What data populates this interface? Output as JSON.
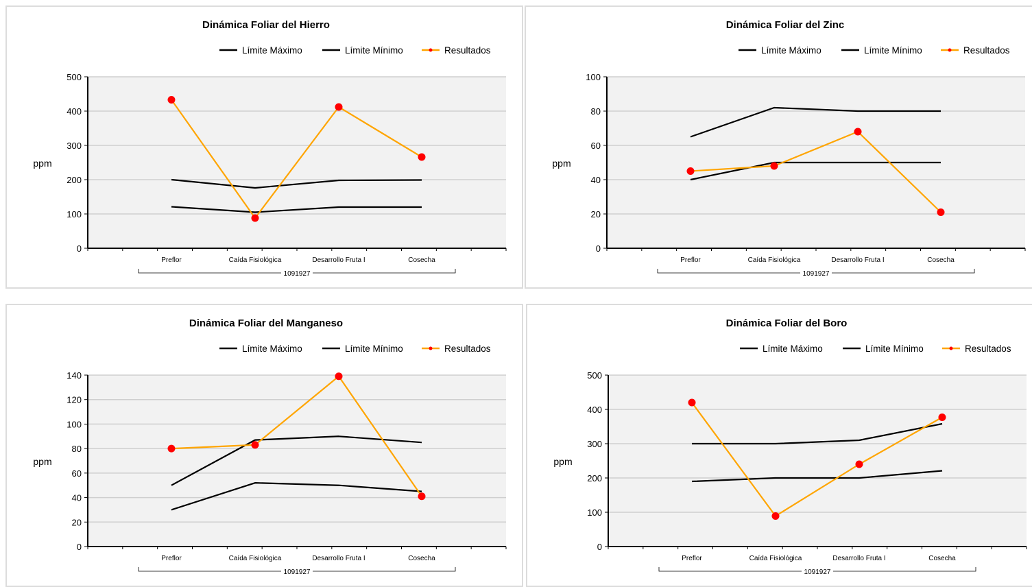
{
  "chart_data": [
    {
      "type": "line",
      "title": "Dinámica Foliar del Hierro",
      "ylabel": "ppm",
      "group_label": "1091927",
      "categories": [
        "Preflor",
        "Caída Fisiológica",
        "Desarrollo Fruta I",
        "Cosecha"
      ],
      "ylim": [
        0,
        500
      ],
      "yticks": [
        0,
        100,
        200,
        300,
        400,
        500
      ],
      "legend_position": "top-right",
      "grid": true,
      "series": [
        {
          "name": "Límite Máximo",
          "color": "#000000",
          "markers": false,
          "values": [
            200,
            176,
            198,
            199
          ]
        },
        {
          "name": "Límite Mínimo",
          "color": "#000000",
          "markers": false,
          "values": [
            121,
            105,
            120,
            120
          ]
        },
        {
          "name": "Resultados",
          "color": "#ffa500",
          "marker_color": "#ff0000",
          "markers": true,
          "values": [
            433,
            88,
            412,
            266
          ]
        }
      ]
    },
    {
      "type": "line",
      "title": "Dinámica Foliar del Zinc",
      "ylabel": "ppm",
      "group_label": "1091927",
      "categories": [
        "Preflor",
        "Caída Fisiológica",
        "Desarrollo Fruta I",
        "Cosecha"
      ],
      "ylim": [
        0,
        100
      ],
      "yticks": [
        0,
        20,
        40,
        60,
        80,
        100
      ],
      "legend_position": "top-right",
      "grid": true,
      "series": [
        {
          "name": "Límite Máximo",
          "color": "#000000",
          "markers": false,
          "values": [
            65,
            82,
            80,
            80
          ]
        },
        {
          "name": "Límite Mínimo",
          "color": "#000000",
          "markers": false,
          "values": [
            40,
            50,
            50,
            50
          ]
        },
        {
          "name": "Resultados",
          "color": "#ffa500",
          "marker_color": "#ff0000",
          "markers": true,
          "values": [
            45,
            48,
            68,
            21
          ]
        }
      ]
    },
    {
      "type": "line",
      "title": "Dinámica Foliar del Manganeso",
      "ylabel": "ppm",
      "group_label": "1091927",
      "categories": [
        "Preflor",
        "Caída Fisiológica",
        "Desarrollo Fruta I",
        "Cosecha"
      ],
      "ylim": [
        0,
        140
      ],
      "yticks": [
        0,
        20,
        40,
        60,
        80,
        100,
        120,
        140
      ],
      "legend_position": "top-right",
      "grid": true,
      "series": [
        {
          "name": "Límite Máximo",
          "color": "#000000",
          "markers": false,
          "values": [
            50,
            87,
            90,
            85
          ]
        },
        {
          "name": "Límite Mínimo",
          "color": "#000000",
          "markers": false,
          "values": [
            30,
            52,
            50,
            45
          ]
        },
        {
          "name": "Resultados",
          "color": "#ffa500",
          "marker_color": "#ff0000",
          "markers": true,
          "values": [
            80,
            83,
            139,
            41
          ]
        }
      ]
    },
    {
      "type": "line",
      "title": "Dinámica Foliar del Boro",
      "ylabel": "ppm",
      "group_label": "1091927",
      "categories": [
        "Preflor",
        "Caída Fisiológica",
        "Desarrollo Fruta I",
        "Cosecha"
      ],
      "ylim": [
        0,
        500
      ],
      "yticks": [
        0,
        100,
        200,
        300,
        400,
        500
      ],
      "legend_position": "top-right",
      "grid": true,
      "series": [
        {
          "name": "Límite Máximo",
          "color": "#000000",
          "markers": false,
          "values": [
            300,
            300,
            310,
            358
          ]
        },
        {
          "name": "Límite Mínimo",
          "color": "#000000",
          "markers": false,
          "values": [
            190,
            200,
            200,
            221
          ]
        },
        {
          "name": "Resultados",
          "color": "#ffa500",
          "marker_color": "#ff0000",
          "markers": true,
          "values": [
            420,
            89,
            240,
            377
          ]
        }
      ]
    }
  ]
}
